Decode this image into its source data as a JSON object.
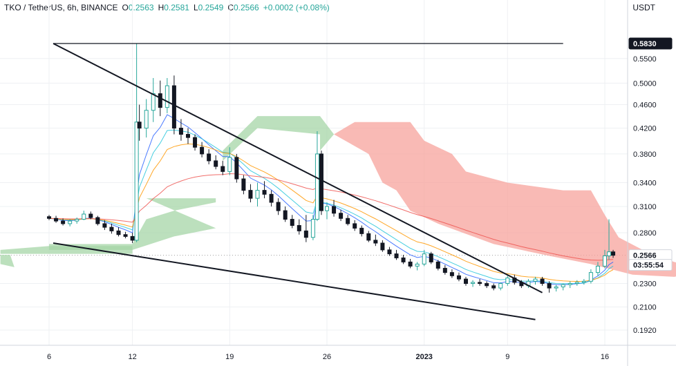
{
  "header": {
    "symbol": "TKO / TetherUS, 6h, BINANCE",
    "open_key": "O",
    "open": "0.2563",
    "high_key": "H",
    "high": "0.2581",
    "low_key": "L",
    "low": "0.2549",
    "close_key": "C",
    "close": "0.2566",
    "change": "+0.0002 (+0.08%)"
  },
  "currency": "USDT",
  "colors": {
    "up": "#26a69a",
    "down": "#131722",
    "cloud_bear": "#f7a39c",
    "cloud_bull": "#a5d6a7",
    "ema_fast": "#2962ff",
    "ema_mid": "#26c6da",
    "ema_slow": "#ff9800",
    "ma_long": "#ef5350"
  },
  "chart_data": {
    "type": "candlestick",
    "y_axis": {
      "scale": "log",
      "ticks": [
        "0.5500",
        "0.5000",
        "0.4600",
        "0.4200",
        "0.3800",
        "0.3400",
        "0.3100",
        "0.2800",
        "0.2300",
        "0.2100",
        "0.1920"
      ]
    },
    "x_axis": {
      "ticks": [
        "6",
        "12",
        "19",
        "26",
        "2023",
        "9",
        "16"
      ]
    },
    "price_tags": [
      {
        "label": "0.5830",
        "style": "dark"
      },
      {
        "label": "0.2566",
        "style": "light"
      },
      {
        "label": "03:55:54",
        "style": "light"
      }
    ],
    "trendlines": [
      {
        "from": {
          "day": 6.3,
          "price": 0.583
        },
        "to": {
          "day": 43.0,
          "price": 0.583
        },
        "color": "#131722"
      },
      {
        "from": {
          "day": 6.3,
          "price": 0.583
        },
        "to": {
          "day": 41.5,
          "price": 0.222
        },
        "color": "#131722"
      },
      {
        "from": {
          "day": 6.3,
          "price": 0.269
        },
        "to": {
          "day": 41.0,
          "price": 0.2
        },
        "color": "#131722"
      }
    ],
    "candles": [
      [
        0.0,
        0.298,
        0.3,
        0.294,
        0.296
      ],
      [
        0.5,
        0.296,
        0.299,
        0.291,
        0.293
      ],
      [
        1.0,
        0.293,
        0.296,
        0.288,
        0.29
      ],
      [
        1.5,
        0.29,
        0.295,
        0.287,
        0.293
      ],
      [
        2.0,
        0.293,
        0.297,
        0.29,
        0.295
      ],
      [
        2.5,
        0.295,
        0.305,
        0.294,
        0.301
      ],
      [
        3.0,
        0.301,
        0.304,
        0.295,
        0.297
      ],
      [
        3.5,
        0.297,
        0.299,
        0.288,
        0.29
      ],
      [
        4.0,
        0.29,
        0.294,
        0.283,
        0.286
      ],
      [
        4.5,
        0.286,
        0.29,
        0.279,
        0.282
      ],
      [
        5.0,
        0.282,
        0.286,
        0.276,
        0.278
      ],
      [
        5.5,
        0.278,
        0.281,
        0.274,
        0.276
      ],
      [
        6.0,
        0.276,
        0.28,
        0.269,
        0.272
      ],
      [
        6.3,
        0.272,
        0.583,
        0.27,
        0.43
      ],
      [
        6.5,
        0.43,
        0.46,
        0.4,
        0.42
      ],
      [
        7.0,
        0.42,
        0.47,
        0.405,
        0.45
      ],
      [
        7.5,
        0.45,
        0.51,
        0.43,
        0.48
      ],
      [
        8.0,
        0.48,
        0.505,
        0.44,
        0.455
      ],
      [
        8.5,
        0.455,
        0.51,
        0.445,
        0.495
      ],
      [
        9.0,
        0.495,
        0.515,
        0.41,
        0.42
      ],
      [
        9.5,
        0.42,
        0.435,
        0.4,
        0.41
      ],
      [
        10.0,
        0.41,
        0.42,
        0.395,
        0.405
      ],
      [
        10.5,
        0.405,
        0.41,
        0.385,
        0.39
      ],
      [
        11.0,
        0.39,
        0.398,
        0.375,
        0.38
      ],
      [
        11.5,
        0.38,
        0.387,
        0.365,
        0.37
      ],
      [
        12.0,
        0.37,
        0.378,
        0.358,
        0.362
      ],
      [
        12.5,
        0.362,
        0.37,
        0.35,
        0.355
      ],
      [
        13.0,
        0.355,
        0.39,
        0.35,
        0.375
      ],
      [
        13.5,
        0.375,
        0.38,
        0.34,
        0.345
      ],
      [
        14.0,
        0.345,
        0.35,
        0.325,
        0.33
      ],
      [
        14.5,
        0.33,
        0.338,
        0.315,
        0.32
      ],
      [
        15.0,
        0.32,
        0.34,
        0.31,
        0.33
      ],
      [
        15.5,
        0.33,
        0.342,
        0.32,
        0.325
      ],
      [
        16.0,
        0.325,
        0.33,
        0.31,
        0.315
      ],
      [
        16.5,
        0.315,
        0.32,
        0.3,
        0.305
      ],
      [
        17.0,
        0.305,
        0.31,
        0.292,
        0.295
      ],
      [
        17.5,
        0.295,
        0.3,
        0.285,
        0.288
      ],
      [
        18.0,
        0.288,
        0.295,
        0.278,
        0.282
      ],
      [
        18.5,
        0.282,
        0.3,
        0.27,
        0.275
      ],
      [
        19.0,
        0.275,
        0.3,
        0.272,
        0.295
      ],
      [
        19.3,
        0.295,
        0.415,
        0.293,
        0.38
      ],
      [
        19.6,
        0.38,
        0.385,
        0.3,
        0.305
      ],
      [
        20.0,
        0.305,
        0.315,
        0.295,
        0.31
      ],
      [
        20.5,
        0.31,
        0.318,
        0.298,
        0.302
      ],
      [
        21.0,
        0.302,
        0.306,
        0.293,
        0.296
      ],
      [
        21.5,
        0.296,
        0.3,
        0.288,
        0.29
      ],
      [
        22.0,
        0.29,
        0.294,
        0.282,
        0.285
      ],
      [
        22.5,
        0.285,
        0.288,
        0.276,
        0.279
      ],
      [
        23.0,
        0.279,
        0.282,
        0.27,
        0.272
      ],
      [
        23.5,
        0.272,
        0.278,
        0.266,
        0.269
      ],
      [
        24.0,
        0.269,
        0.272,
        0.26,
        0.262
      ],
      [
        24.5,
        0.262,
        0.265,
        0.256,
        0.258
      ],
      [
        25.0,
        0.258,
        0.262,
        0.252,
        0.254
      ],
      [
        25.5,
        0.254,
        0.257,
        0.248,
        0.25
      ],
      [
        26.0,
        0.25,
        0.253,
        0.244,
        0.246
      ],
      [
        26.5,
        0.246,
        0.25,
        0.242,
        0.248
      ],
      [
        27.0,
        0.248,
        0.262,
        0.246,
        0.258
      ],
      [
        27.5,
        0.258,
        0.26,
        0.248,
        0.25
      ],
      [
        28.0,
        0.25,
        0.252,
        0.242,
        0.244
      ],
      [
        28.5,
        0.244,
        0.247,
        0.238,
        0.24
      ],
      [
        29.0,
        0.24,
        0.243,
        0.235,
        0.237
      ],
      [
        29.5,
        0.237,
        0.24,
        0.232,
        0.234
      ],
      [
        30.0,
        0.234,
        0.236,
        0.228,
        0.23
      ],
      [
        30.5,
        0.23,
        0.233,
        0.227,
        0.231
      ],
      [
        31.0,
        0.231,
        0.234,
        0.228,
        0.23
      ],
      [
        31.5,
        0.23,
        0.232,
        0.226,
        0.228
      ],
      [
        32.0,
        0.228,
        0.23,
        0.224,
        0.226
      ],
      [
        32.5,
        0.226,
        0.231,
        0.224,
        0.23
      ],
      [
        33.0,
        0.23,
        0.237,
        0.228,
        0.235
      ],
      [
        33.5,
        0.235,
        0.238,
        0.229,
        0.231
      ],
      [
        34.0,
        0.231,
        0.233,
        0.226,
        0.228
      ],
      [
        34.5,
        0.228,
        0.234,
        0.226,
        0.232
      ],
      [
        35.0,
        0.232,
        0.236,
        0.229,
        0.234
      ],
      [
        35.5,
        0.234,
        0.236,
        0.228,
        0.23
      ],
      [
        36.0,
        0.23,
        0.232,
        0.222,
        0.226
      ],
      [
        36.5,
        0.226,
        0.229,
        0.223,
        0.227
      ],
      [
        37.0,
        0.227,
        0.23,
        0.224,
        0.229
      ],
      [
        37.5,
        0.229,
        0.232,
        0.226,
        0.23
      ],
      [
        38.0,
        0.23,
        0.233,
        0.228,
        0.231
      ],
      [
        38.5,
        0.231,
        0.234,
        0.229,
        0.232
      ],
      [
        39.0,
        0.232,
        0.243,
        0.23,
        0.24
      ],
      [
        39.5,
        0.24,
        0.25,
        0.237,
        0.246
      ],
      [
        40.0,
        0.246,
        0.262,
        0.244,
        0.256
      ],
      [
        40.3,
        0.256,
        0.295,
        0.252,
        0.26
      ],
      [
        40.6,
        0.26,
        0.262,
        0.254,
        0.2566
      ]
    ]
  }
}
